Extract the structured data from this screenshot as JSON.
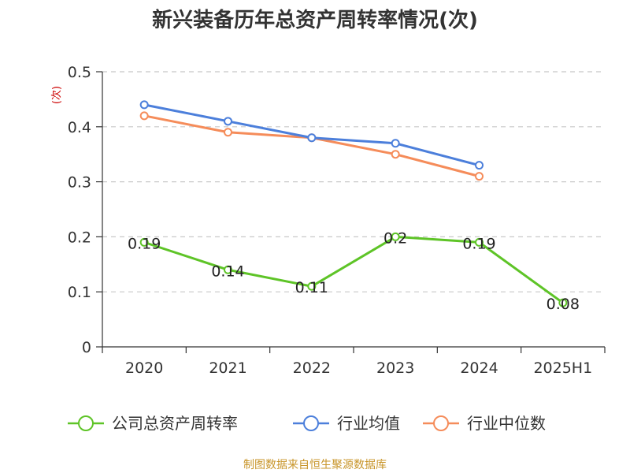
{
  "chart_data": {
    "type": "line",
    "title": "新兴装备历年总资产周转率情况(次)",
    "ylabel": "(次)",
    "xlabel": "",
    "categories": [
      "2020",
      "2021",
      "2022",
      "2023",
      "2024",
      "2025H1"
    ],
    "ylim": [
      0,
      0.5
    ],
    "yticks": [
      "0",
      "0.1",
      "0.2",
      "0.3",
      "0.4",
      "0.5"
    ],
    "grid": true,
    "legend_position": "bottom",
    "series": [
      {
        "name": "公司总资产周转率",
        "color": "#5ec427",
        "values": [
          0.19,
          0.14,
          0.11,
          0.2,
          0.19,
          0.08
        ],
        "labels": [
          "0.19",
          "0.14",
          "0.11",
          "0.2",
          "0.19",
          "0.08"
        ]
      },
      {
        "name": "行业均值",
        "color": "#4c7fdb",
        "values": [
          0.44,
          0.41,
          0.38,
          0.37,
          0.33,
          null
        ]
      },
      {
        "name": "行业中位数",
        "color": "#f58c5a",
        "values": [
          0.42,
          0.39,
          0.38,
          0.35,
          0.31,
          null
        ]
      }
    ]
  },
  "source_note": "制图数据来自恒生聚源数据库"
}
